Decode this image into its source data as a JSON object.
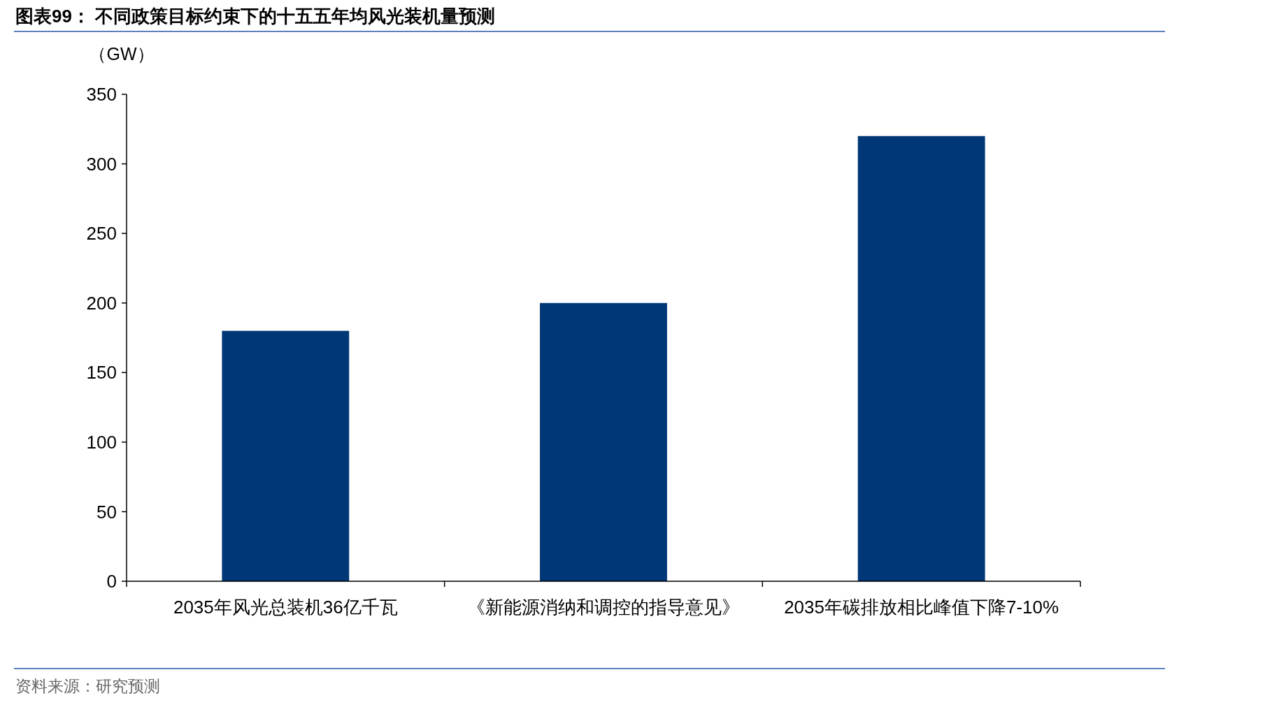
{
  "chart_data": {
    "type": "bar",
    "title": "图表99：  不同政策目标约束下的十五五年均风光装机量预测",
    "ylabel": "（GW）",
    "categories": [
      "2035年风光总装机36亿千瓦",
      "《新能源消纳和调控的指导意见》",
      "2035年碳排放相比峰值下降7-10%"
    ],
    "values": [
      180,
      200,
      320
    ],
    "color": "#003776",
    "ylim": [
      0,
      350
    ],
    "yticks": [
      0,
      50,
      100,
      150,
      200,
      250,
      300,
      350
    ],
    "grid": false,
    "annotations": [
      "资料来源：研究预测"
    ]
  }
}
